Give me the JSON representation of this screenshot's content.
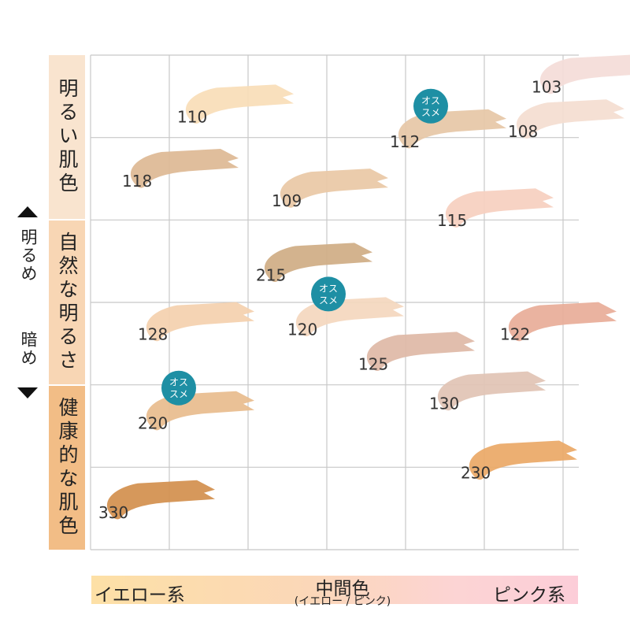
{
  "chart_data": {
    "type": "scatter",
    "y_axis": {
      "up_label": "明るめ",
      "down_label": "暗め",
      "bands": [
        "明るい肌色",
        "自然な明るさ",
        "健康的な肌色"
      ]
    },
    "x_axis": {
      "left_label": "イエロー系",
      "middle_label": "中間色",
      "middle_sublabel": "(イエロー / ピンク)",
      "right_label": "ピンク系"
    },
    "grid": true,
    "recommend_badge": "オス\nスメ",
    "points": [
      {
        "label": "103",
        "x": 5.9,
        "y": 9.4,
        "color": "#f4dcd8",
        "recommended": false
      },
      {
        "label": "110",
        "x": 1.4,
        "y": 8.8,
        "color": "#f8ddb7",
        "recommended": false
      },
      {
        "label": "112",
        "x": 4.1,
        "y": 8.3,
        "color": "#e6c7a6",
        "recommended": true
      },
      {
        "label": "108",
        "x": 5.6,
        "y": 8.5,
        "color": "#f4ddd0",
        "recommended": false
      },
      {
        "label": "118",
        "x": 0.7,
        "y": 7.5,
        "color": "#ddb994",
        "recommended": false
      },
      {
        "label": "109",
        "x": 2.6,
        "y": 7.1,
        "color": "#e9c8a5",
        "recommended": false
      },
      {
        "label": "115",
        "x": 4.7,
        "y": 6.7,
        "color": "#f6cfbf",
        "recommended": false
      },
      {
        "label": "215",
        "x": 2.4,
        "y": 5.6,
        "color": "#cfac84",
        "recommended": false
      },
      {
        "label": "120",
        "x": 2.8,
        "y": 4.5,
        "color": "#f4d7be",
        "recommended": true
      },
      {
        "label": "122",
        "x": 5.5,
        "y": 4.4,
        "color": "#e8ad98",
        "recommended": false
      },
      {
        "label": "128",
        "x": 0.9,
        "y": 4.4,
        "color": "#f4d0ae",
        "recommended": false
      },
      {
        "label": "125",
        "x": 3.7,
        "y": 3.8,
        "color": "#deb8a6",
        "recommended": false
      },
      {
        "label": "130",
        "x": 4.6,
        "y": 3.0,
        "color": "#e1c3b4",
        "recommended": false
      },
      {
        "label": "220",
        "x": 0.9,
        "y": 2.6,
        "color": "#e8bc8d",
        "recommended": true
      },
      {
        "label": "230",
        "x": 5.0,
        "y": 1.6,
        "color": "#eaa866",
        "recommended": false
      },
      {
        "label": "330",
        "x": 0.4,
        "y": 0.8,
        "color": "#d38f4d",
        "recommended": false
      }
    ],
    "badge_color": "#1e8fa4"
  }
}
